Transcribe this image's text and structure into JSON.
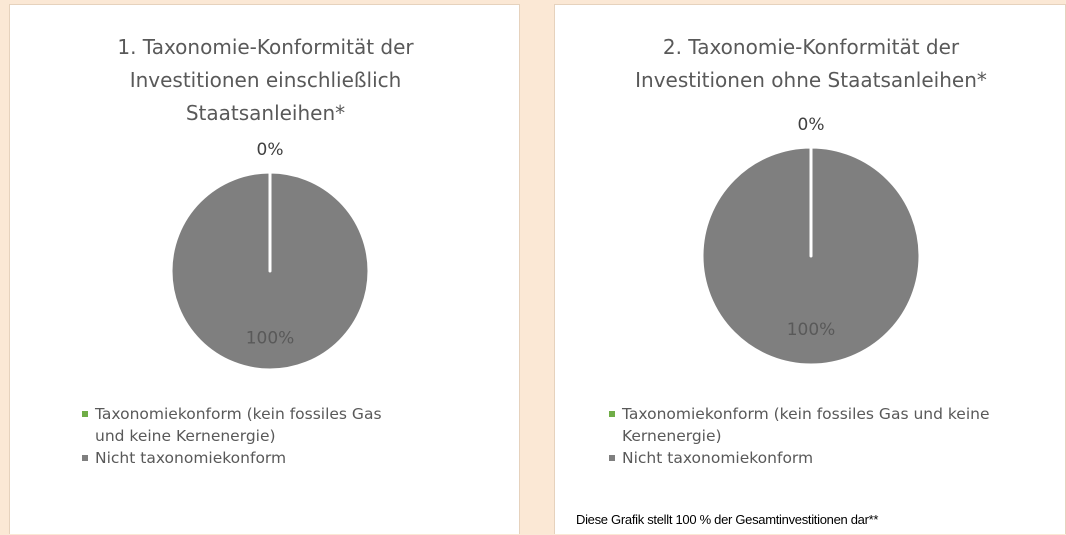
{
  "chart_data": [
    {
      "type": "pie",
      "title": "1. Taxonomie-Konformität der Investitionen einschließlich Staatsanleihen*",
      "categories": [
        "Taxonomiekonform (kein fossiles Gas und keine Kernenergie)",
        "Nicht taxonomiekonform"
      ],
      "values": [
        0,
        100
      ],
      "value_labels": [
        "0%",
        "100%"
      ],
      "colors": [
        "#70ad47",
        "#7f7f7f"
      ],
      "legend": "bottom"
    },
    {
      "type": "pie",
      "title": "2. Taxonomie-Konformität der Investitionen ohne Staatsanleihen*",
      "categories": [
        "Taxonomiekonform (kein fossiles Gas und keine Kernenergie)",
        "Nicht taxonomiekonform"
      ],
      "values": [
        0,
        100
      ],
      "value_labels": [
        "0%",
        "100%"
      ],
      "colors": [
        "#70ad47",
        "#7f7f7f"
      ],
      "legend": "bottom",
      "annotation": "Diese Grafik stellt 100 % der Gesamtinvestitionen dar**"
    }
  ]
}
